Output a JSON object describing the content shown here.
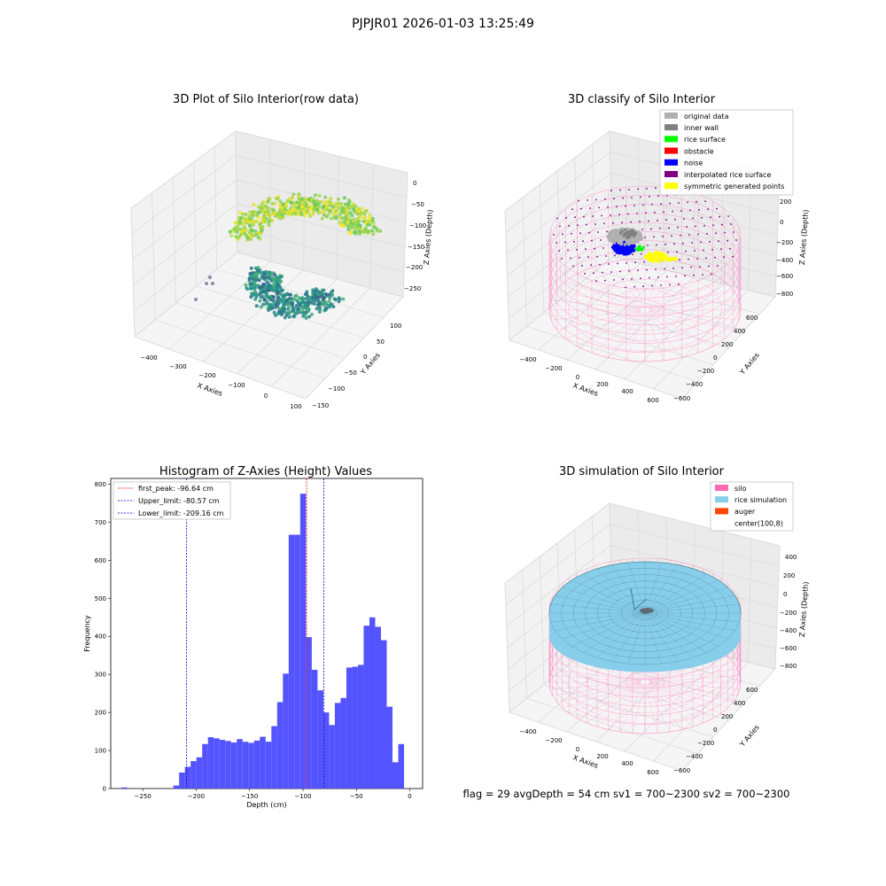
{
  "figure": {
    "suptitle": "PJPJR01 2026-01-03 13:25:49",
    "status_line": "flag = 29   avgDepth = 54 cm     sv1 = 700~2300  sv2 = 700~2300"
  },
  "colors": {
    "silo": "#ff69b4",
    "rice_simulation": "#87ceeb",
    "auger": "#ff4500",
    "hist_bar": "#4b4bff",
    "peak_line": "#ff0000",
    "limit_line": "#0000cc"
  },
  "chart_data": [
    {
      "type": "scatter",
      "projection": "3d",
      "title": "3D Plot of Silo Interior(row data)",
      "xlabel": "X Axies",
      "ylabel": "Y Axies",
      "zlabel": "Z Axies (Depth)",
      "xticks": [
        "−400",
        "−300",
        "−200",
        "−100",
        "0",
        "100"
      ],
      "yticks": [
        "100",
        "50",
        "0",
        "−50",
        "−100",
        "−150"
      ],
      "zticks": [
        "0",
        "−50",
        "−100",
        "−150",
        "−200",
        "−250"
      ],
      "xlim": [
        -450,
        100
      ],
      "ylim": [
        -150,
        130
      ],
      "zlim": [
        -280,
        10
      ],
      "colormap": "viridis"
    },
    {
      "type": "scatter",
      "projection": "3d",
      "title": "3D classify of Silo Interior",
      "xlabel": "X Axies",
      "ylabel": "Y Axies",
      "zlabel": "Z Axies (Depth)",
      "xticks": [
        "−400",
        "−200",
        "0",
        "200",
        "400",
        "600"
      ],
      "yticks": [
        "600",
        "400",
        "200",
        "0",
        "−200",
        "−400",
        "−600"
      ],
      "zticks": [
        "200",
        "0",
        "−200",
        "−400",
        "−600",
        "−800"
      ],
      "legend": [
        {
          "label": "original data",
          "color": "#b0b0b0"
        },
        {
          "label": "inner wall",
          "color": "#808080"
        },
        {
          "label": "rice surface",
          "color": "#00ff00"
        },
        {
          "label": "obstacle",
          "color": "#ff0000"
        },
        {
          "label": "noise",
          "color": "#0000ff"
        },
        {
          "label": "interpolated rice surface",
          "color": "#800080"
        },
        {
          "label": "symmetric generated points",
          "color": "#ffff00"
        }
      ],
      "legend_loc": "upper right"
    },
    {
      "type": "bar",
      "title": "Histogram of Z-Axies (Height) Values",
      "xlabel": "Depth (cm)",
      "ylabel": "Frequency",
      "xlim": [
        -280,
        12
      ],
      "ylim": [
        0,
        815
      ],
      "xticks": [
        -250,
        -200,
        -150,
        -100,
        -50,
        0
      ],
      "xtick_labels": [
        "−250",
        "−200",
        "−150",
        "−100",
        "−50",
        "0"
      ],
      "yticks": [
        0,
        100,
        200,
        300,
        400,
        500,
        600,
        700,
        800
      ],
      "bin_start": -270,
      "bin_width": 5.4,
      "values": [
        3,
        0,
        0,
        0,
        0,
        0,
        0,
        0,
        0,
        8,
        42,
        57,
        72,
        82,
        117,
        135,
        132,
        128,
        125,
        121,
        130,
        123,
        120,
        126,
        136,
        123,
        164,
        227,
        302,
        667,
        667,
        775,
        398,
        312,
        258,
        200,
        167,
        225,
        238,
        318,
        320,
        325,
        428,
        450,
        425,
        390,
        215,
        69,
        117
      ],
      "vlines": [
        {
          "label": "first_peak: -96.64 cm",
          "x": -96.64,
          "color": "#ff0000"
        },
        {
          "label": "Upper_limit: -80.57 cm",
          "x": -80.57,
          "color": "#0000cc"
        },
        {
          "label": "Lower_limit: -209.16 cm",
          "x": -209.16,
          "color": "#0000cc"
        }
      ],
      "legend_loc": "upper left"
    },
    {
      "type": "surface",
      "projection": "3d",
      "title": "3D simulation of Silo Interior",
      "xlabel": "X Axies",
      "ylabel": "Y Axies",
      "zlabel": "Z Axies (Depth)",
      "xticks": [
        "−400",
        "−200",
        "0",
        "200",
        "400",
        "600"
      ],
      "yticks": [
        "600",
        "400",
        "200",
        "0",
        "−200",
        "−400",
        "−600"
      ],
      "zticks": [
        "400",
        "200",
        "0",
        "−200",
        "−400",
        "−600",
        "−800"
      ],
      "legend": [
        {
          "label": "silo",
          "color": "#ff69b4"
        },
        {
          "label": "rice simulation",
          "color": "#87ceeb"
        },
        {
          "label": "auger",
          "color": "#ff4500"
        },
        {
          "label": "center(100,8)",
          "color": "#ffffff"
        }
      ],
      "legend_loc": "upper right"
    }
  ]
}
